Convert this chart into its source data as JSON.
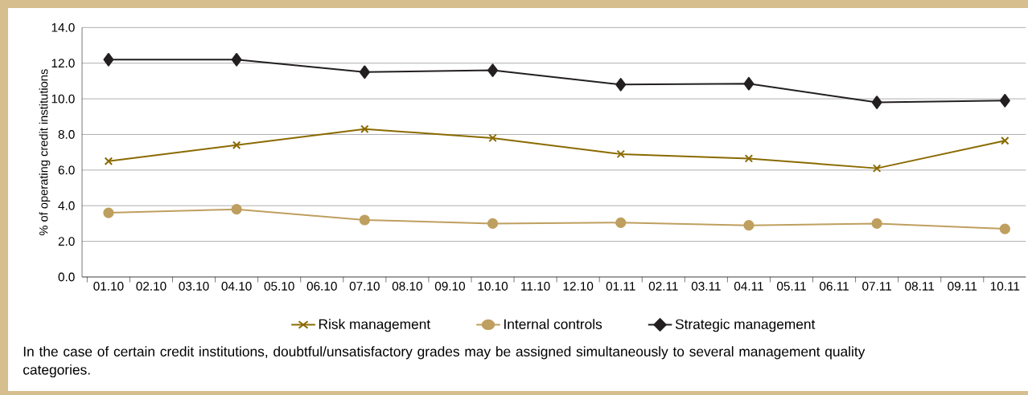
{
  "chart_data": {
    "type": "line",
    "ylabel": "% of operating credit institutions",
    "categories": [
      "01.10",
      "02.10",
      "03.10",
      "04.10",
      "05.10",
      "06.10",
      "07.10",
      "08.10",
      "09.10",
      "10.10",
      "11.10",
      "12.10",
      "01.11",
      "02.11",
      "03.11",
      "04.11",
      "05.11",
      "06.11",
      "07.11",
      "08.11",
      "09.11",
      "10.11"
    ],
    "series": [
      {
        "name": "Risk management",
        "color": "#8a6a00",
        "marker": "cross",
        "values": [
          6.5,
          null,
          null,
          7.4,
          null,
          null,
          8.3,
          null,
          null,
          7.8,
          null,
          null,
          6.9,
          null,
          null,
          6.65,
          null,
          null,
          6.1,
          null,
          null,
          7.65
        ]
      },
      {
        "name": "Internal controls",
        "color": "#bf9f5f",
        "marker": "circle",
        "values": [
          3.6,
          null,
          null,
          3.8,
          null,
          null,
          3.2,
          null,
          null,
          3.0,
          null,
          null,
          3.05,
          null,
          null,
          2.9,
          null,
          null,
          3.0,
          null,
          null,
          2.7
        ]
      },
      {
        "name": "Strategic management",
        "color": "#231f20",
        "marker": "diamond",
        "values": [
          12.2,
          null,
          null,
          12.2,
          null,
          null,
          11.5,
          null,
          null,
          11.6,
          null,
          null,
          10.8,
          null,
          null,
          10.85,
          null,
          null,
          9.8,
          null,
          null,
          9.9
        ]
      }
    ],
    "ylim": [
      0,
      14
    ],
    "yticks": [
      {
        "value": 0,
        "label": "0.0"
      },
      {
        "value": 2,
        "label": "2.0"
      },
      {
        "value": 4,
        "label": "4.0"
      },
      {
        "value": 6,
        "label": "6.0"
      },
      {
        "value": 8,
        "label": "8.0"
      },
      {
        "value": 10,
        "label": "10.0"
      },
      {
        "value": 12,
        "label": "12.0"
      },
      {
        "value": 14,
        "label": "14.0"
      }
    ],
    "grid": "y",
    "legend": "bottom",
    "line_style": "solid",
    "annotations": [
      "In the case of certain credit institutions, doubtful/unsatisfactory grades may be assigned simultaneously to several management quality categories."
    ]
  }
}
